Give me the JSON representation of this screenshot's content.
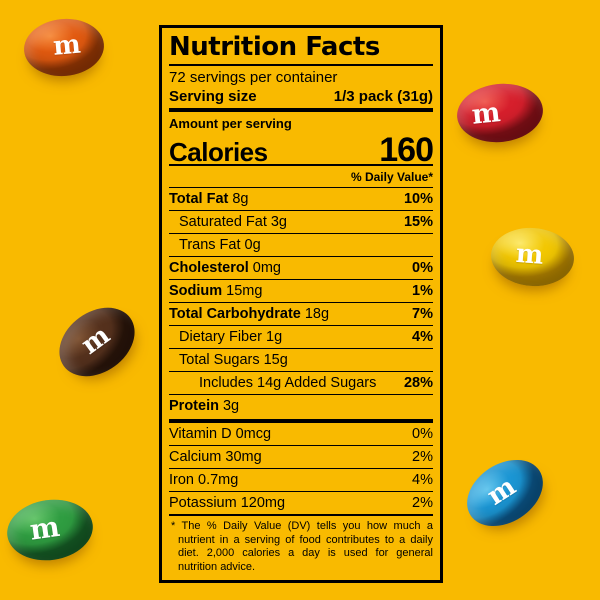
{
  "page": {
    "background_color": "#F9BA00",
    "label_border_color": "#000000",
    "text_color": "#000000"
  },
  "label": {
    "title": "Nutrition Facts",
    "servings_per_container": "72 servings per container",
    "serving_size_label": "Serving size",
    "serving_size_value": "1/3 pack (31g)",
    "amount_per_serving_label": "Amount per serving",
    "calories_label": "Calories",
    "calories_value": "160",
    "daily_value_header": "% Daily Value*",
    "rows": [
      {
        "name": "Total Fat",
        "amount": "8g",
        "pct": "10%"
      },
      {
        "name": "Saturated Fat",
        "amount": "3g",
        "pct": "15%"
      },
      {
        "name": "Trans Fat",
        "amount": "0g",
        "pct": ""
      },
      {
        "name": "Cholesterol",
        "amount": "0mg",
        "pct": "0%"
      },
      {
        "name": "Sodium",
        "amount": "15mg",
        "pct": "1%"
      },
      {
        "name": "Total Carbohydrate",
        "amount": "18g",
        "pct": "7%"
      },
      {
        "name": "Dietary Fiber",
        "amount": "1g",
        "pct": "4%"
      },
      {
        "name": "Total Sugars",
        "amount": "15g",
        "pct": ""
      },
      {
        "name": "Includes 14g Added Sugars",
        "amount": "",
        "pct": "28%"
      },
      {
        "name": "Protein",
        "amount": "3g",
        "pct": ""
      }
    ],
    "vitamins": [
      {
        "name": "Vitamin D",
        "amount": "0mcg",
        "pct": "0%"
      },
      {
        "name": "Calcium",
        "amount": "30mg",
        "pct": "2%"
      },
      {
        "name": "Iron",
        "amount": "0.7mg",
        "pct": "4%"
      },
      {
        "name": "Potassium",
        "amount": "120mg",
        "pct": "2%"
      }
    ],
    "footnote": "* The % Daily Value (DV) tells you how much a nutrient in a serving of food contributes to a daily diet. 2,000 calories a day is used for general nutrition advice."
  },
  "candies": [
    {
      "name": "orange",
      "letter": "m",
      "base": "#E25A10",
      "light": "#F68B3D",
      "dark": "#A03B05"
    },
    {
      "name": "red",
      "letter": "m",
      "base": "#D61F2C",
      "light": "#F05A50",
      "dark": "#8F1119"
    },
    {
      "name": "yellow",
      "letter": "m",
      "base": "#F2C702",
      "light": "#FCE968",
      "dark": "#C18E00"
    },
    {
      "name": "brown",
      "letter": "m",
      "base": "#55311D",
      "light": "#7E5232",
      "dark": "#2E170B"
    },
    {
      "name": "blue",
      "letter": "m",
      "base": "#1B96D4",
      "light": "#63C6EE",
      "dark": "#0C5C93"
    },
    {
      "name": "green",
      "letter": "m",
      "base": "#2F9D41",
      "light": "#63C468",
      "dark": "#176328"
    }
  ]
}
